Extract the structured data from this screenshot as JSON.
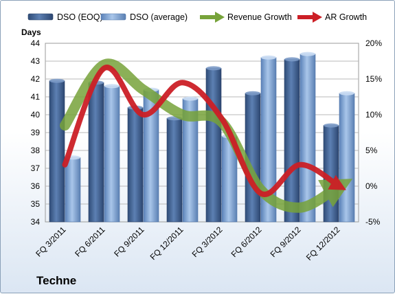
{
  "company_label": "Techne",
  "chart_data": {
    "type": "bar",
    "categories": [
      "FQ 3/2011",
      "FQ 6/2011",
      "FQ 9/2011",
      "FQ 12/2011",
      "FQ 3/2012",
      "FQ 6/2012",
      "FQ 9/2012",
      "FQ 12/2012"
    ],
    "series": [
      {
        "name": "DSO (EOQ)",
        "type": "bar",
        "axis": "left",
        "color": "#4a6b9c",
        "values": [
          41.9,
          41.8,
          40.4,
          39.8,
          42.6,
          41.2,
          43.1,
          39.4
        ]
      },
      {
        "name": "DSO (average)",
        "type": "bar",
        "axis": "left",
        "color": "#7fa4d4",
        "values": [
          37.6,
          41.6,
          41.4,
          40.9,
          38.8,
          43.2,
          43.4,
          41.2
        ]
      },
      {
        "name": "Revenue Growth",
        "type": "line",
        "axis": "right",
        "unit": "%",
        "color": "#77a33a",
        "values": [
          8.5,
          17.0,
          13.5,
          10.0,
          9.0,
          -0.5,
          -3.0,
          0.0
        ]
      },
      {
        "name": "AR Growth",
        "type": "line",
        "axis": "right",
        "unit": "%",
        "color": "#cc1f26",
        "values": [
          3.0,
          16.5,
          10.0,
          14.5,
          9.5,
          -1.0,
          3.0,
          0.0
        ]
      }
    ],
    "ylabel": "Days",
    "ylim": [
      34,
      44
    ],
    "yticks": [
      "34",
      "35",
      "36",
      "37",
      "38",
      "39",
      "40",
      "41",
      "42",
      "43",
      "44"
    ],
    "y2lim": [
      -5,
      20
    ],
    "y2ticks": [
      "-5%",
      "0%",
      "5%",
      "10%",
      "15%",
      "20%"
    ],
    "grid": true,
    "legend": "top"
  }
}
